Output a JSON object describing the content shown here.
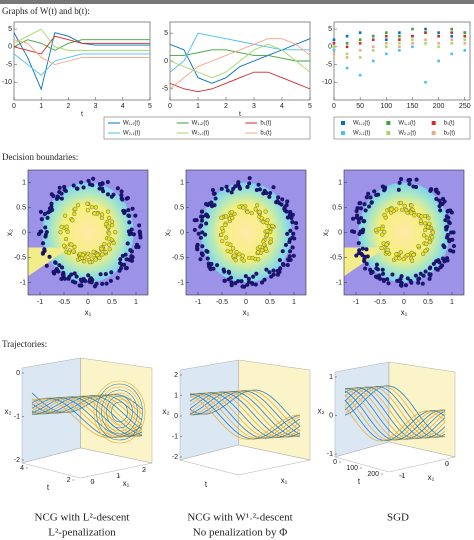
{
  "sections": [
    "Graphs of W(t) and b(t):",
    "Decision boundaries:",
    "Trajectories:"
  ],
  "chart_data": [
    {
      "type": "line",
      "xlabel": "t",
      "xlim": [
        0,
        5
      ],
      "ylim": [
        -15,
        7
      ],
      "xticks": [
        0,
        1,
        2,
        3,
        4,
        5
      ],
      "yticks": [
        -10,
        -5,
        0,
        5
      ],
      "x": [
        0,
        0.5,
        1,
        1.5,
        2,
        2.5,
        3,
        3.5,
        4,
        4.5,
        5
      ],
      "series": [
        {
          "name": "W₁,₁(t)",
          "color": "#0072bd",
          "values": [
            4,
            -3,
            -12,
            4,
            3,
            1,
            0.5,
            0.5,
            0.5,
            0.5,
            0.5
          ]
        },
        {
          "name": "W₁,₂(t)",
          "color": "#3aa33a",
          "values": [
            0,
            2,
            1,
            -1,
            1,
            2,
            2,
            2,
            2,
            2,
            2
          ]
        },
        {
          "name": "b₁(t)",
          "color": "#d62728",
          "values": [
            0,
            -1,
            -2,
            3,
            2,
            1,
            1,
            1,
            1,
            1,
            1
          ]
        },
        {
          "name": "W₂,₁(t)",
          "color": "#4dbeee",
          "values": [
            -2,
            -5,
            -8,
            -4,
            -3,
            -2,
            -2,
            -2,
            -2,
            -2,
            -2
          ]
        },
        {
          "name": "W₂,₂(t)",
          "color": "#a6d96a",
          "values": [
            1,
            3,
            5,
            0,
            -1,
            -1,
            -1,
            -1,
            -1,
            -1,
            -1
          ]
        },
        {
          "name": "b₂(t)",
          "color": "#f4a582",
          "values": [
            2,
            1,
            -3,
            -5,
            -4,
            -3,
            -3,
            -3,
            -3,
            -3,
            -3
          ]
        }
      ]
    },
    {
      "type": "line",
      "xlabel": "t",
      "xlim": [
        0,
        5
      ],
      "ylim": [
        -7,
        7
      ],
      "xticks": [
        0,
        1,
        2,
        3,
        4,
        5
      ],
      "yticks": [
        -5,
        0,
        5
      ],
      "x": [
        0,
        0.5,
        1,
        1.5,
        2,
        2.5,
        3,
        3.5,
        4,
        4.5,
        5
      ],
      "series": [
        {
          "name": "W₁,₁(t)",
          "color": "#0072bd",
          "values": [
            3,
            2,
            -3,
            -4,
            -3,
            -1,
            0,
            1,
            2,
            3,
            4
          ]
        },
        {
          "name": "W₁,₂(t)",
          "color": "#3aa33a",
          "values": [
            1,
            1,
            1.5,
            2,
            2,
            1.5,
            1,
            1,
            0.5,
            0,
            0
          ]
        },
        {
          "name": "b₁(t)",
          "color": "#d62728",
          "values": [
            -4,
            -5,
            -5.5,
            -5,
            -4,
            -3,
            -2,
            -2,
            -3,
            -4,
            -5
          ]
        },
        {
          "name": "W₂,₁(t)",
          "color": "#4dbeee",
          "values": [
            -2,
            0,
            5,
            4.5,
            4,
            3.5,
            3,
            2.5,
            2,
            2,
            2
          ]
        },
        {
          "name": "W₂,₂(t)",
          "color": "#a6d96a",
          "values": [
            0,
            -1,
            -2,
            -3,
            -2,
            0,
            2,
            3,
            2,
            0,
            -2
          ]
        },
        {
          "name": "b₂(t)",
          "color": "#f4a582",
          "values": [
            -5,
            -3,
            -1,
            0,
            1,
            2,
            3,
            4,
            4,
            3,
            1
          ]
        }
      ]
    },
    {
      "type": "scatter",
      "xlim": [
        0,
        260
      ],
      "ylim": [
        -15,
        7
      ],
      "xticks": [
        0,
        50,
        100,
        150,
        200,
        250
      ],
      "yticks": [
        -10,
        -5,
        0,
        5
      ],
      "x": [
        0,
        25,
        50,
        75,
        100,
        125,
        150,
        175,
        200,
        225,
        250
      ],
      "series": [
        {
          "name": "W₁,₁(t)",
          "color": "#0072bd",
          "values": [
            2,
            3,
            4,
            3,
            2,
            4,
            3,
            5,
            4,
            3,
            4
          ]
        },
        {
          "name": "W₁,₂(t)",
          "color": "#3aa33a",
          "values": [
            0,
            1,
            2,
            3,
            4,
            3,
            5,
            4,
            3,
            5,
            4
          ]
        },
        {
          "name": "b₁(t)",
          "color": "#d62728",
          "values": [
            1,
            0,
            1,
            2,
            3,
            2,
            3,
            4,
            3,
            4,
            3
          ]
        },
        {
          "name": "W₂,₁(t)",
          "color": "#4dbeee",
          "values": [
            -1,
            -6,
            -8,
            -4,
            -2,
            -1,
            0,
            -10,
            -4,
            -2,
            -1
          ]
        },
        {
          "name": "W₂,₂(t)",
          "color": "#a6d96a",
          "values": [
            0,
            -2,
            -3,
            -1,
            0,
            1,
            2,
            1,
            0,
            1,
            2
          ]
        },
        {
          "name": "b₂(t)",
          "color": "#f4a582",
          "values": [
            -2,
            -3,
            -1,
            0,
            1,
            0,
            1,
            2,
            1,
            2,
            1
          ]
        }
      ]
    }
  ],
  "boundaries": [
    {
      "xlabel": "x₁",
      "ylabel": "x₂",
      "xlim": [
        -1.25,
        1.25
      ],
      "ylim": [
        -1.25,
        1.25
      ],
      "xticks": [
        -1,
        -0.5,
        0,
        0.5,
        1
      ],
      "yticks": [
        -1,
        -0.5,
        0,
        0.5,
        1
      ]
    },
    {
      "xlabel": "x₁",
      "ylabel": "x₂",
      "xlim": [
        -1.25,
        1.25
      ],
      "ylim": [
        -1.25,
        1.25
      ],
      "xticks": [
        -1,
        -0.5,
        0,
        0.5,
        1
      ],
      "yticks": [
        -1,
        -0.5,
        0,
        0.5,
        1
      ]
    },
    {
      "xlabel": "x₁",
      "ylabel": "x₂",
      "xlim": [
        -1.25,
        1.25
      ],
      "ylim": [
        -1.25,
        1.25
      ],
      "xticks": [
        -1,
        -0.5,
        0,
        0.5,
        1
      ],
      "yticks": [
        -1,
        -0.5,
        0,
        0.5,
        1
      ]
    }
  ],
  "trajectories": [
    {
      "zlabel": "x₂",
      "tlabel": "t",
      "xlabel": "x₁",
      "zticks": [
        0,
        -1,
        -2
      ],
      "tticks": [
        4,
        2
      ],
      "xticks": [
        0,
        1,
        2
      ]
    },
    {
      "zlabel": "x₂",
      "tlabel": "t",
      "xlabel": "x₁",
      "zticks": [
        2,
        1,
        0,
        -1,
        -2
      ],
      "tticks": [],
      "xticks": []
    },
    {
      "zlabel": "x₂",
      "tlabel": "t",
      "xlabel": "x₁",
      "zticks": [
        1,
        0,
        -1
      ],
      "tticks": [
        0,
        100,
        200
      ],
      "xticks": [
        -1,
        0
      ]
    }
  ],
  "captions": [
    [
      "NCG with L²-descent",
      "L²-penalization"
    ],
    [
      "NCG with W¹˒²-descent",
      "No penalization by Φ"
    ],
    [
      "SGD"
    ]
  ]
}
